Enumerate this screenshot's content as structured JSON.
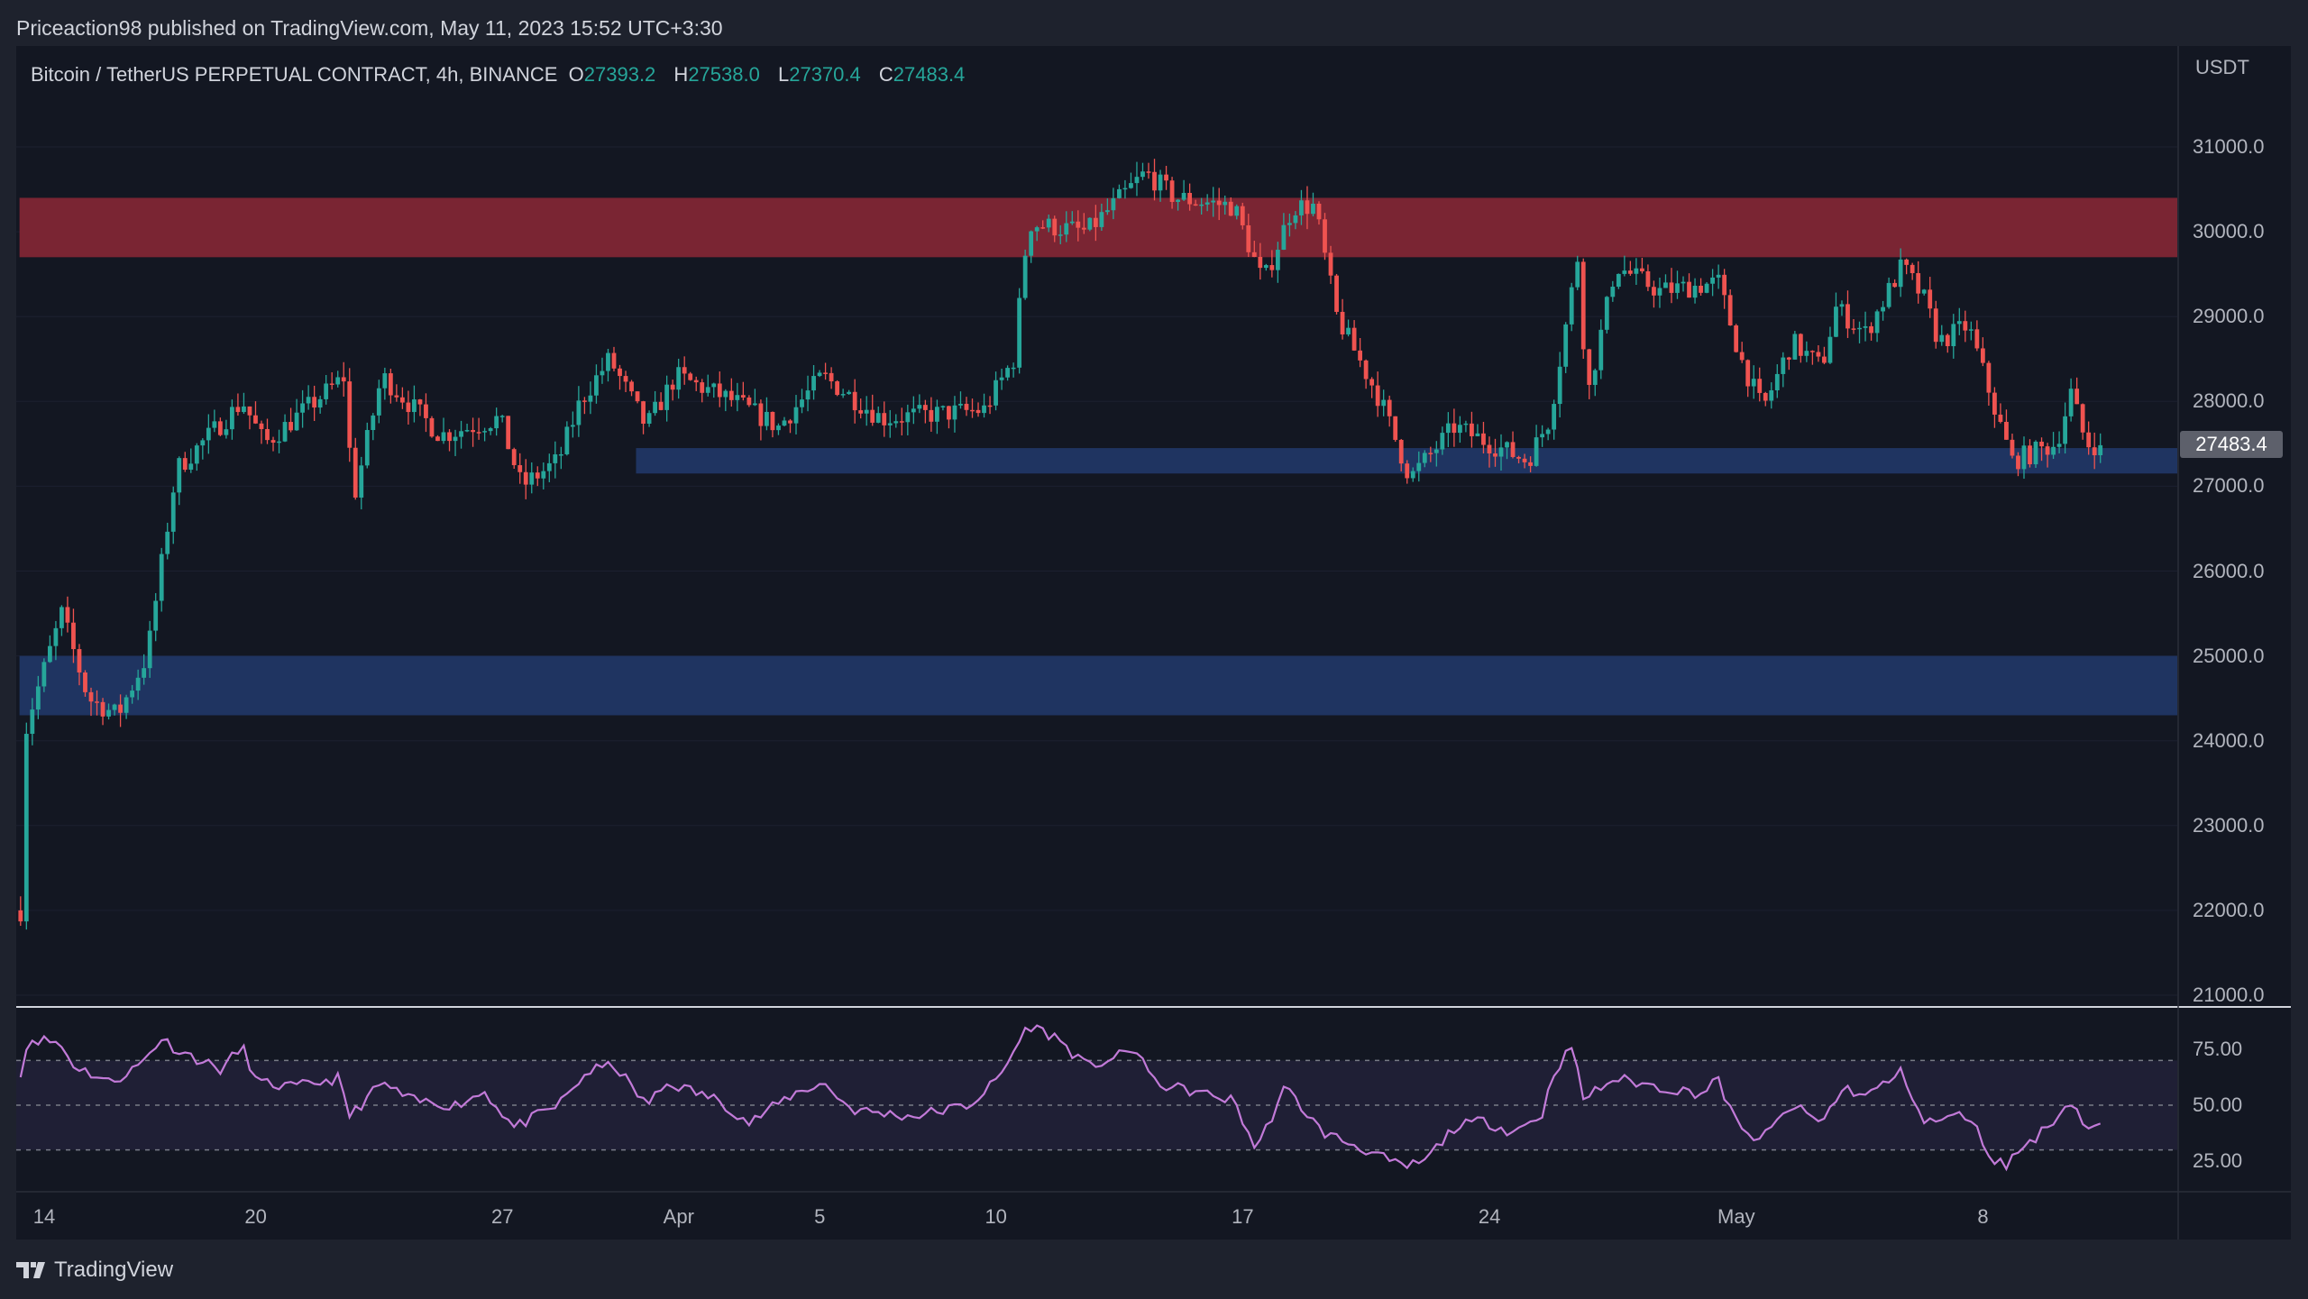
{
  "header": {
    "published": "Priceaction98 published on TradingView.com, May 11, 2023 15:52 UTC+3:30"
  },
  "legend": {
    "symbol": "Bitcoin / TetherUS PERPETUAL CONTRACT, 4h, BINANCE",
    "o_label": "O",
    "o": "27393.2",
    "h_label": "H",
    "h": "27538.0",
    "l_label": "L",
    "l": "27370.4",
    "c_label": "C",
    "c": "27483.4"
  },
  "price_axis": {
    "currency": "USDT",
    "ticks": [
      "31000.0",
      "30000.0",
      "29000.0",
      "28000.0",
      "27000.0",
      "26000.0",
      "25000.0",
      "24000.0",
      "23000.0",
      "22000.0",
      "21000.0"
    ],
    "current": "27483.4"
  },
  "rsi_axis": {
    "ticks": [
      "75.00",
      "50.00",
      "25.00"
    ]
  },
  "time_axis": {
    "ticks": [
      {
        "label": "14",
        "day": 0
      },
      {
        "label": "20",
        "day": 6
      },
      {
        "label": "27",
        "day": 13
      },
      {
        "label": "Apr",
        "day": 18
      },
      {
        "label": "5",
        "day": 22
      },
      {
        "label": "10",
        "day": 27
      },
      {
        "label": "17",
        "day": 34
      },
      {
        "label": "24",
        "day": 41
      },
      {
        "label": "May",
        "day": 48
      },
      {
        "label": "8",
        "day": 55
      }
    ]
  },
  "footer": {
    "brand": "TradingView"
  },
  "colors": {
    "up": "#26a69a",
    "down": "#ef5350",
    "resistance": "#7a2533",
    "support": "#1f3461",
    "rsi": "#c27ad8"
  },
  "chart_data": {
    "type": "candlestick",
    "timeframe": "4h",
    "ylim": [
      21000,
      31500
    ],
    "zones": [
      {
        "name": "resistance",
        "from": 29700,
        "to": 30400,
        "start_day": -0.7
      },
      {
        "name": "support-1",
        "from": 27150,
        "to": 27450,
        "start_day": 16.79
      },
      {
        "name": "support-2",
        "from": 24300,
        "to": 25000,
        "start_day": -0.7
      }
    ],
    "price_path": [
      [
        -0.67,
        22000
      ],
      [
        -0.5,
        24200
      ],
      [
        0.5,
        25500
      ],
      [
        1.25,
        24500
      ],
      [
        2.08,
        24300
      ],
      [
        2.92,
        25000
      ],
      [
        3.75,
        27200
      ],
      [
        5.63,
        28000
      ],
      [
        6.25,
        27500
      ],
      [
        8.54,
        28300
      ],
      [
        8.75,
        26800
      ],
      [
        9.58,
        28300
      ],
      [
        11.25,
        27600
      ],
      [
        12.92,
        27800
      ],
      [
        13.54,
        27000
      ],
      [
        14.58,
        27300
      ],
      [
        15.21,
        28000
      ],
      [
        16.04,
        28500
      ],
      [
        17.08,
        27700
      ],
      [
        17.92,
        28300
      ],
      [
        19.58,
        28000
      ],
      [
        20.83,
        27700
      ],
      [
        22.08,
        28300
      ],
      [
        23.75,
        27800
      ],
      [
        26.67,
        27900
      ],
      [
        27.5,
        28500
      ],
      [
        27.92,
        30100
      ],
      [
        29.58,
        30000
      ],
      [
        31.25,
        30700
      ],
      [
        32.08,
        30400
      ],
      [
        33.75,
        30300
      ],
      [
        34.58,
        29400
      ],
      [
        35.42,
        30300
      ],
      [
        36.04,
        30300
      ],
      [
        36.67,
        29000
      ],
      [
        37.92,
        28000
      ],
      [
        38.75,
        27100
      ],
      [
        40,
        27700
      ],
      [
        42.08,
        27300
      ],
      [
        42.71,
        27800
      ],
      [
        43.54,
        29800
      ],
      [
        43.75,
        28000
      ],
      [
        44.58,
        29600
      ],
      [
        45.83,
        29300
      ],
      [
        47.5,
        29400
      ],
      [
        48.13,
        28500
      ],
      [
        48.75,
        27900
      ],
      [
        49.58,
        28700
      ],
      [
        50.42,
        28400
      ],
      [
        50.83,
        29100
      ],
      [
        51.67,
        28800
      ],
      [
        52.71,
        29600
      ],
      [
        53.33,
        29200
      ],
      [
        53.75,
        28700
      ],
      [
        54.58,
        28900
      ],
      [
        55.42,
        27800
      ],
      [
        55.83,
        27300
      ],
      [
        57.08,
        27500
      ],
      [
        57.5,
        28100
      ],
      [
        57.92,
        27500
      ],
      [
        58.42,
        27483.4
      ]
    ],
    "rsi": {
      "levels": [
        70,
        50,
        30
      ],
      "ylim": [
        15,
        92
      ],
      "path": [
        [
          -0.67,
          65
        ],
        [
          -0.42,
          80
        ],
        [
          0.42,
          78
        ],
        [
          0.83,
          68
        ],
        [
          1.88,
          60
        ],
        [
          2.71,
          68
        ],
        [
          3.33,
          80
        ],
        [
          3.75,
          75
        ],
        [
          5,
          66
        ],
        [
          5.63,
          76
        ],
        [
          6.04,
          60
        ],
        [
          7.08,
          58
        ],
        [
          8.33,
          62
        ],
        [
          8.67,
          45
        ],
        [
          9.58,
          60
        ],
        [
          10.42,
          52
        ],
        [
          11.67,
          50
        ],
        [
          12.5,
          56
        ],
        [
          13.33,
          40
        ],
        [
          14.58,
          50
        ],
        [
          15.42,
          65
        ],
        [
          16.17,
          68
        ],
        [
          17.08,
          50
        ],
        [
          17.71,
          60
        ],
        [
          19.17,
          52
        ],
        [
          20,
          42
        ],
        [
          21.25,
          55
        ],
        [
          22.08,
          60
        ],
        [
          22.92,
          48
        ],
        [
          24.58,
          45
        ],
        [
          26.25,
          50
        ],
        [
          27.08,
          62
        ],
        [
          27.92,
          86
        ],
        [
          28.75,
          80
        ],
        [
          29.58,
          67
        ],
        [
          31.04,
          75
        ],
        [
          31.46,
          60
        ],
        [
          32.92,
          55
        ],
        [
          33.75,
          52
        ],
        [
          34.38,
          30
        ],
        [
          35.21,
          58
        ],
        [
          36.25,
          38
        ],
        [
          37.5,
          30
        ],
        [
          38.54,
          22
        ],
        [
          39.17,
          25
        ],
        [
          40,
          40
        ],
        [
          40.83,
          43
        ],
        [
          41.67,
          38
        ],
        [
          42.5,
          46
        ],
        [
          42.83,
          65
        ],
        [
          43.33,
          76
        ],
        [
          43.67,
          53
        ],
        [
          44.58,
          62
        ],
        [
          45.83,
          58
        ],
        [
          47.08,
          55
        ],
        [
          47.42,
          63
        ],
        [
          48.13,
          38
        ],
        [
          48.75,
          35
        ],
        [
          49.58,
          50
        ],
        [
          50.42,
          42
        ],
        [
          51.04,
          58
        ],
        [
          51.67,
          54
        ],
        [
          52.71,
          65
        ],
        [
          53.33,
          42
        ],
        [
          54.58,
          46
        ],
        [
          55.21,
          27
        ],
        [
          55.63,
          23
        ],
        [
          56.04,
          30
        ],
        [
          56.67,
          38
        ],
        [
          57.5,
          52
        ],
        [
          57.92,
          40
        ],
        [
          58.42,
          40
        ]
      ]
    }
  }
}
